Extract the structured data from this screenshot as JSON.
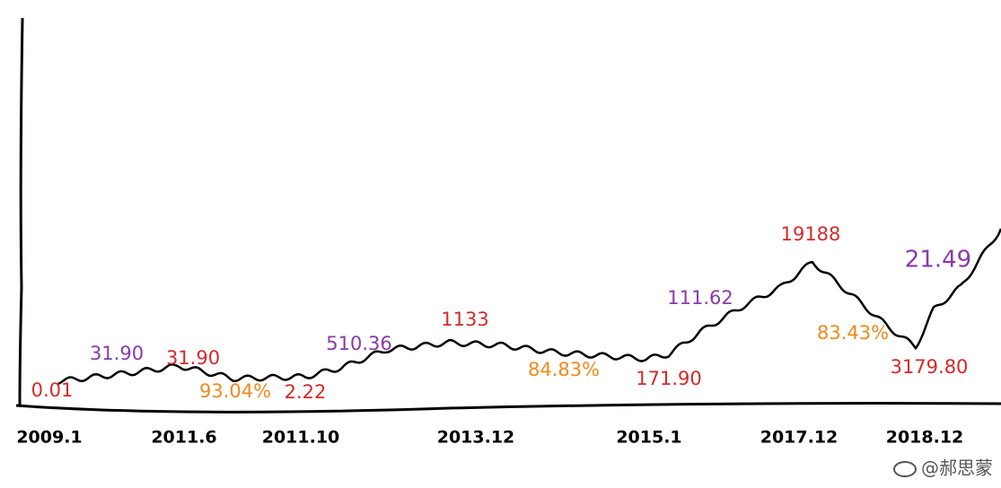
{
  "chart_data": {
    "type": "line",
    "categories": [
      "2009.1",
      "2011.6",
      "2011.10",
      "2013.12",
      "2015.1",
      "2017.12",
      "2018.12"
    ],
    "annotations": [
      {
        "text": "0.01",
        "color": "#d42a2a"
      },
      {
        "text": "31.90",
        "color": "#8a3aa8"
      },
      {
        "text": "31.90",
        "color": "#d42a2a"
      },
      {
        "text": "93.04%",
        "color": "#f08a1c"
      },
      {
        "text": "2.22",
        "color": "#d42a2a"
      },
      {
        "text": "510.36",
        "color": "#8a3aa8"
      },
      {
        "text": "1133",
        "color": "#d42a2a"
      },
      {
        "text": "84.83%",
        "color": "#f08a1c"
      },
      {
        "text": "171.90",
        "color": "#d42a2a"
      },
      {
        "text": "111.62",
        "color": "#8a3aa8"
      },
      {
        "text": "19188",
        "color": "#d42a2a"
      },
      {
        "text": "83.43%",
        "color": "#f08a1c"
      },
      {
        "text": "3179.80",
        "color": "#d42a2a"
      },
      {
        "text": "21.49",
        "color": "#8a3aa8"
      }
    ],
    "line_color": "#000000",
    "watermark": "@郝思蒙"
  }
}
